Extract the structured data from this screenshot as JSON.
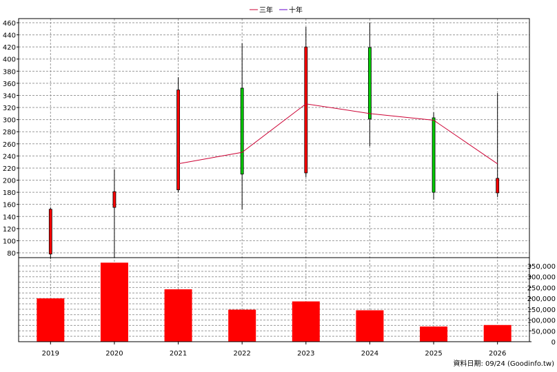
{
  "chart_data": {
    "type": "candlestick-bar",
    "legend": [
      {
        "name": "三年",
        "color": "#cc0033"
      },
      {
        "name": "十年",
        "color": "#6600cc"
      }
    ],
    "categories": [
      "2019",
      "2020",
      "2021",
      "2022",
      "2023",
      "2024",
      "2025",
      "2026"
    ],
    "price_axis": {
      "ticks": [
        "460",
        "440",
        "420",
        "400",
        "380",
        "360",
        "340",
        "320",
        "300",
        "280",
        "260",
        "240",
        "220",
        "200",
        "180",
        "160",
        "140",
        "120",
        "100",
        "80"
      ],
      "ylim": [
        64,
        466
      ]
    },
    "candles": [
      {
        "open": 78,
        "close": 152,
        "high": 155,
        "low": 70,
        "color": "red"
      },
      {
        "open": 155,
        "close": 181,
        "high": 218,
        "low": 72,
        "color": "red"
      },
      {
        "open": 184,
        "close": 349,
        "high": 370,
        "low": 180,
        "color": "red"
      },
      {
        "open": 352,
        "close": 210,
        "high": 426,
        "low": 152,
        "color": "green"
      },
      {
        "open": 212,
        "close": 420,
        "high": 453,
        "low": 205,
        "color": "red"
      },
      {
        "open": 419,
        "close": 301,
        "high": 460,
        "low": 256,
        "color": "green"
      },
      {
        "open": 303,
        "close": 180,
        "high": 312,
        "low": 168,
        "color": "green"
      },
      {
        "open": 179,
        "close": 203,
        "high": 344,
        "low": 172,
        "color": "red"
      }
    ],
    "three_year_line": [
      null,
      null,
      227,
      246,
      326,
      310,
      299,
      227
    ],
    "ten_year_line": [],
    "volume_axis": {
      "ticks": [
        "350,000",
        "300,000",
        "250,000",
        "200,000",
        "150,000",
        "100,000",
        "50,000",
        "0"
      ],
      "ylim": [
        0,
        370000
      ]
    },
    "volumes": [
      200000,
      365000,
      242000,
      148000,
      186000,
      145000,
      70000,
      77000
    ],
    "colors": {
      "up": "#ff0000",
      "down": "#00cc00",
      "bar": "#ff0000",
      "grid": "#999999",
      "three_year": "#cc0033"
    },
    "source_note": "資料日期: 09/24  (Goodinfo.tw)"
  }
}
